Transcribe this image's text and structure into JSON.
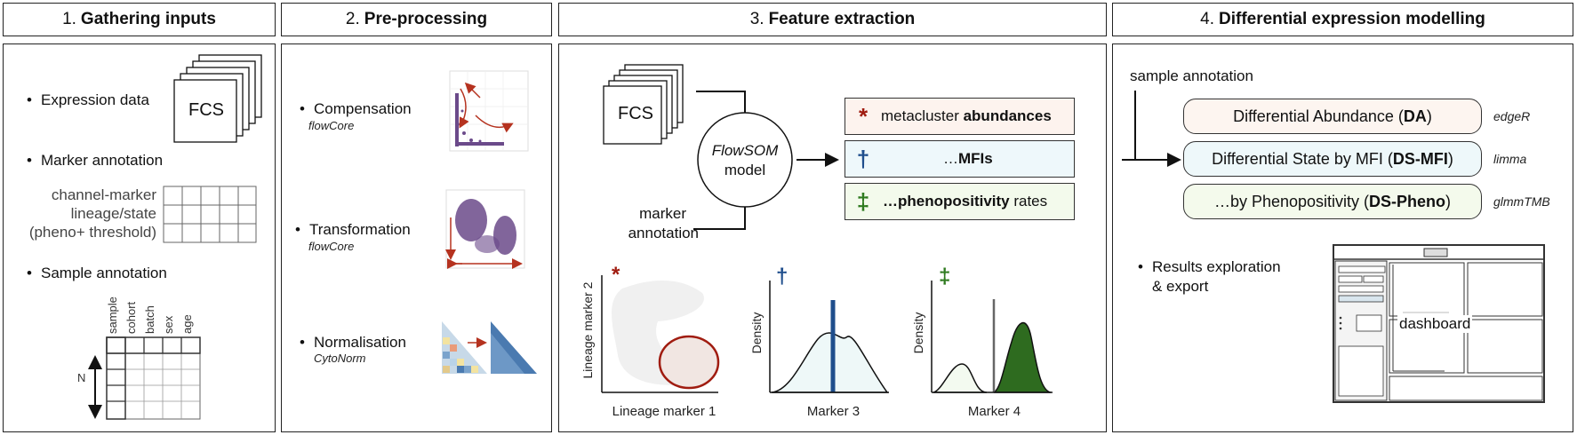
{
  "headers": [
    {
      "num": "1.",
      "label": "Gathering inputs"
    },
    {
      "num": "2.",
      "label": "Pre-processing"
    },
    {
      "num": "3.",
      "label": "Feature extraction"
    },
    {
      "num": "4.",
      "label": "Differential expression modelling"
    }
  ],
  "panel1": {
    "expression_data": "Expression data",
    "fcs": "FCS",
    "marker_annotation": "Marker annotation",
    "channel_marker": "channel-marker",
    "lineage_state": "lineage/state",
    "pheno_threshold": "(pheno+ threshold)",
    "sample_annotation": "Sample annotation",
    "columns": [
      "sample",
      "cohort",
      "batch",
      "sex",
      "age"
    ],
    "n_label": "N"
  },
  "panel2": {
    "steps": [
      {
        "label": "Compensation",
        "tool": "flowCore"
      },
      {
        "label": "Transformation",
        "tool": "flowCore"
      },
      {
        "label": "Normalisation",
        "tool": "CytoNorm"
      }
    ]
  },
  "panel3": {
    "fcs": "FCS",
    "model_line1": "FlowSOM",
    "model_line2": "model",
    "marker_line1": "marker",
    "marker_line2": "annotation",
    "features": [
      {
        "symbol": "*",
        "pre": "metacluster ",
        "bold": "abundances",
        "post": "",
        "color": "#a01c10",
        "bg": "#fdf3ee"
      },
      {
        "symbol": "†",
        "pre": "…",
        "bold": "MFIs",
        "post": "",
        "color": "#1f4e8c",
        "bg": "#eef8fb"
      },
      {
        "symbol": "‡",
        "pre": "…",
        "bold": "phenopositivity",
        "post": " rates",
        "color": "#2e7a1f",
        "bg": "#f3faec"
      }
    ],
    "plot1": {
      "ylabel": "Lineage marker 2",
      "xlabel": "Lineage marker 1",
      "symbol": "*"
    },
    "plot2": {
      "ylabel": "Density",
      "xlabel": "Marker 3",
      "symbol": "†"
    },
    "plot3": {
      "ylabel": "Density",
      "xlabel": "Marker 4",
      "symbol": "‡"
    }
  },
  "panel4": {
    "sample_annotation": "sample annotation",
    "models": [
      {
        "pre": "Differential Abundance (",
        "bold": "DA",
        "post": ")",
        "tool": "edgeR",
        "bg": "#fdf5f0"
      },
      {
        "pre": "Differential State by MFI (",
        "bold": "DS-MFI",
        "post": ")",
        "tool": "limma",
        "bg": "#eef8fa"
      },
      {
        "pre": "…by Phenopositivity (",
        "bold": "DS-Pheno",
        "post": ")",
        "tool": "glmmTMB",
        "bg": "#f4faec"
      }
    ],
    "results_line1": "Results exploration",
    "results_line2": "& export",
    "dashboard": "dashboard"
  }
}
